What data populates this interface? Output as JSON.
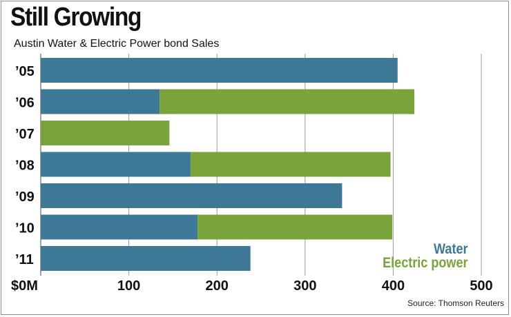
{
  "chart_data": {
    "type": "bar",
    "orientation": "horizontal",
    "stacked": true,
    "title": "Still Growing",
    "subtitle": "Austin Water & Electric Power bond Sales",
    "source": "Source: Thomson Reuters",
    "categories": [
      "’05",
      "’06",
      "’07",
      "’08",
      "’09",
      "’10",
      "’11"
    ],
    "series": [
      {
        "name": "Water",
        "color": "#3d7896",
        "values": [
          405,
          135,
          0,
          170,
          342,
          178,
          238
        ]
      },
      {
        "name": "Electric power",
        "color": "#7aa33b",
        "values": [
          0,
          289,
          146,
          227,
          0,
          221,
          0
        ]
      }
    ],
    "xlim": [
      0,
      500
    ],
    "x_ticks": [
      0,
      100,
      200,
      300,
      400,
      500
    ],
    "x_tick_labels": [
      "$0M",
      "100",
      "200",
      "300",
      "400",
      "500"
    ],
    "grid": true,
    "legend": "bottom-right"
  }
}
